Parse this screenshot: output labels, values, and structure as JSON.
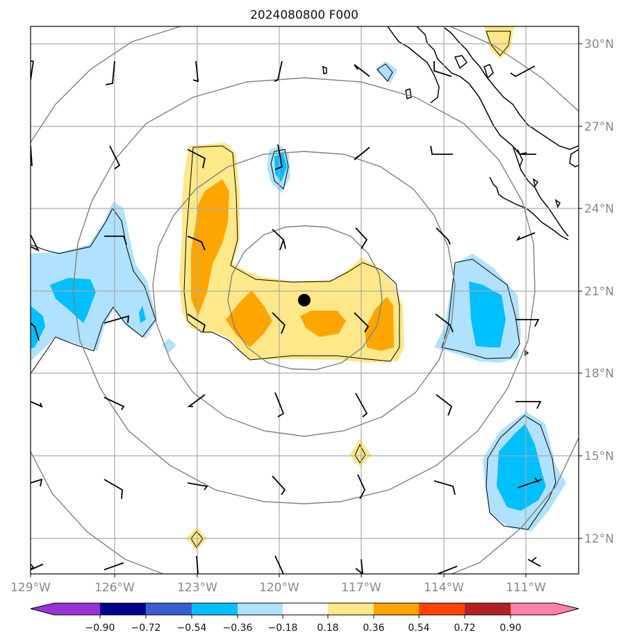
{
  "title": "2024080800 F000",
  "lat_labels": [
    "30°N",
    "27°N",
    "24°N",
    "21°N",
    "18°N",
    "15°N",
    "12°N"
  ],
  "lon_labels": [
    "129°W",
    "126°W",
    "123°W",
    "120°W",
    "117°W",
    "114°W",
    "111°W"
  ],
  "colorbar": {
    "ticks": [
      "−0.90",
      "−0.72",
      "−0.54",
      "−0.36",
      "−0.18",
      "0.18",
      "0.36",
      "0.54",
      "0.72",
      "0.90"
    ],
    "colors": [
      "#9a33d6",
      "#00008b",
      "#3a5fcd",
      "#00bfff",
      "#b0e2ff",
      "#ffffff",
      "#ffe88a",
      "#ffa500",
      "#ff4500",
      "#b22222",
      "#ff82ab"
    ]
  },
  "colors": {
    "light_blue": "#b0e2ff",
    "blue": "#00bfff",
    "light_yellow": "#ffe88a",
    "orange": "#ffa500"
  }
}
